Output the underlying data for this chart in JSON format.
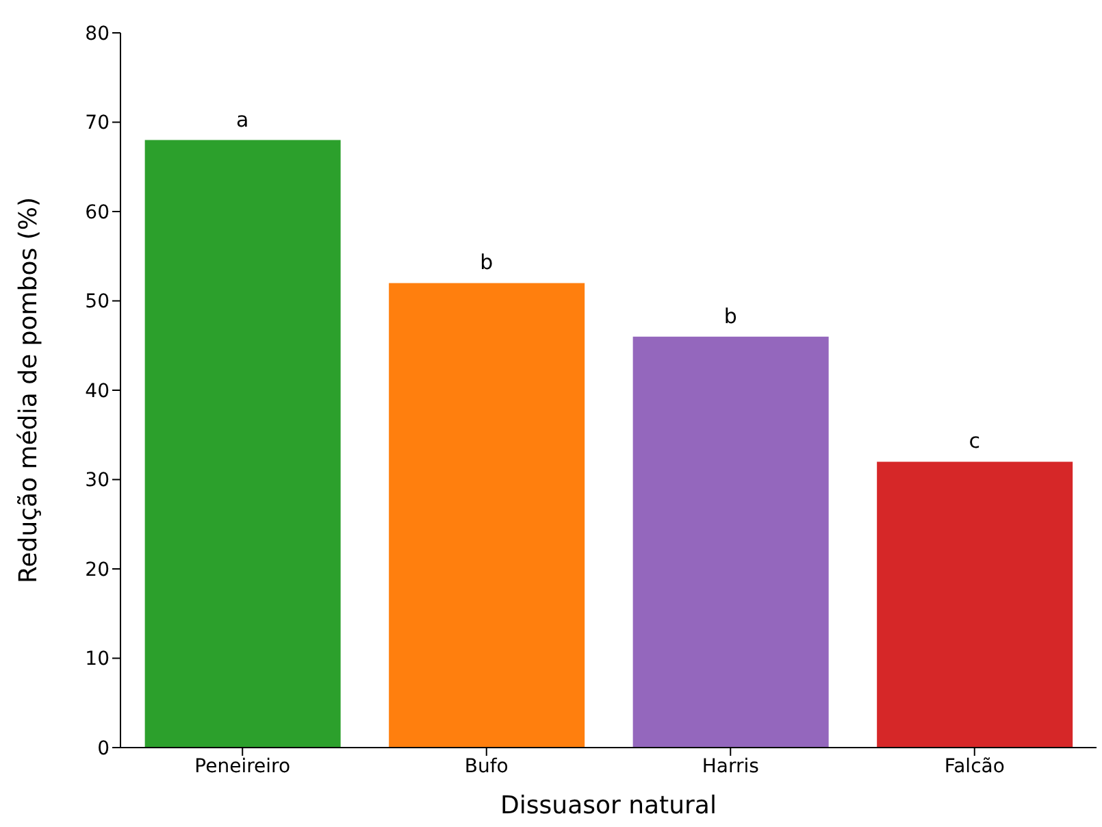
{
  "chart_data": {
    "type": "bar",
    "xlabel": "Dissuasor natural",
    "ylabel": "Redução média de pombos (%)",
    "categories": [
      "Peneireiro",
      "Bufo",
      "Harris",
      "Falcão"
    ],
    "values": [
      68,
      52,
      46,
      32
    ],
    "colors": [
      "#2ca02c",
      "#ff7f0e",
      "#9467bd",
      "#d62728"
    ],
    "ylim": [
      0,
      80
    ],
    "yticks": [
      0,
      10,
      20,
      30,
      40,
      50,
      60,
      70,
      80
    ],
    "grid": false,
    "legend": false,
    "annotations": [
      {
        "text": "a",
        "x": "Peneireiro",
        "y": 68
      },
      {
        "text": "b",
        "x": "Bufo",
        "y": 52
      },
      {
        "text": "b",
        "x": "Harris",
        "y": 46
      },
      {
        "text": "c",
        "x": "Falcão",
        "y": 32
      }
    ]
  }
}
